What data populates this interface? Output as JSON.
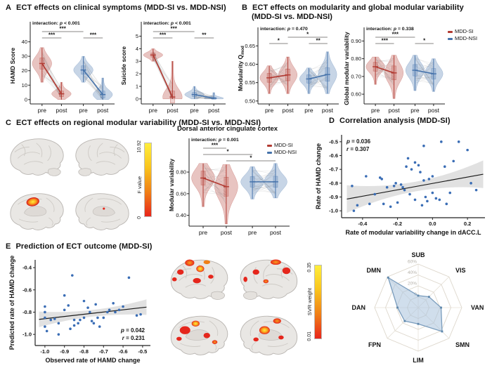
{
  "panels": {
    "a": {
      "label": "A",
      "title": "ECT effects on clinical symptoms (MDD-SI vs. MDD-NSI)"
    },
    "b": {
      "label": "B",
      "title": "ECT effects on modularity and global modular variability",
      "title2": "(MDD-SI vs. MDD-NSI)"
    },
    "c": {
      "label": "C",
      "title": "ECT effects on regional modular variability (MDD-SI vs. MDD-NSI)",
      "colorbar": {
        "label": "F value",
        "min": "0",
        "max": "10.92"
      }
    },
    "d": {
      "label": "D",
      "title": "Correlation analysis (MDD-SI)"
    },
    "e": {
      "label": "E",
      "title": "Prediction of ECT outcome (MDD-SI)",
      "colorbar": {
        "label": "SVR weight",
        "min": "0.01",
        "max": "0.35"
      }
    }
  },
  "legend": {
    "si": "MDD-SI",
    "nsi": "MDD-NSI",
    "si_color": "#b23a32",
    "nsi_color": "#4673ab"
  },
  "chart_data": [
    {
      "id": "hamd",
      "type": "violin",
      "ylabel": "HAMD Score",
      "ylim": [
        -3,
        50
      ],
      "yticks": [
        0,
        10,
        20,
        30,
        40
      ],
      "ytick_labels": [
        "0",
        "10",
        "20",
        "30",
        "40"
      ],
      "xlabels": [
        "pre",
        "post",
        "pre",
        "post"
      ],
      "interaction": "interaction: p < 0.001",
      "series": [
        {
          "name": "MDD-SI",
          "color": "#b23a32",
          "pre": {
            "mean": 25,
            "lo": 12,
            "hi": 36
          },
          "post": {
            "mean": 4,
            "lo": 0,
            "hi": 12
          }
        },
        {
          "name": "MDD-NSI",
          "color": "#4673ab",
          "pre": {
            "mean": 20.5,
            "lo": 12,
            "hi": 30
          },
          "post": {
            "mean": 3.5,
            "lo": 0,
            "hi": 15
          }
        }
      ],
      "sig": [
        {
          "a": 0,
          "b": 2,
          "label": "***",
          "row": 0
        },
        {
          "a": 0,
          "b": 1,
          "label": "***",
          "row": 1
        },
        {
          "a": 2,
          "b": 3,
          "label": "***",
          "row": 1
        }
      ]
    },
    {
      "id": "suicide",
      "type": "violin",
      "ylabel": "Suicide score",
      "ylim": [
        -0.4,
        5.7
      ],
      "yticks": [
        0,
        1,
        2,
        3,
        4,
        5
      ],
      "ytick_labels": [
        "0",
        "1",
        "2",
        "3",
        "4",
        "5"
      ],
      "xlabels": [
        "pre",
        "post",
        "pre",
        "post"
      ],
      "interaction": "interaction: p < 0.001",
      "series": [
        {
          "name": "MDD-SI",
          "color": "#b23a32",
          "pre": {
            "mean": 3.5,
            "lo": 3,
            "hi": 4
          },
          "post": {
            "mean": 0.15,
            "lo": 0,
            "hi": 3
          }
        },
        {
          "name": "MDD-NSI",
          "color": "#4673ab",
          "pre": {
            "mean": 0.35,
            "lo": 0,
            "hi": 1
          },
          "post": {
            "mean": 0.05,
            "lo": 0,
            "hi": 0.5
          }
        }
      ],
      "sig": [
        {
          "a": 0,
          "b": 2,
          "label": "***",
          "row": 0
        },
        {
          "a": 0,
          "b": 1,
          "label": "***",
          "row": 1
        },
        {
          "a": 2,
          "b": 3,
          "label": "**",
          "row": 1
        }
      ]
    },
    {
      "id": "qmod",
      "type": "violin",
      "ylabel": "Modularity Q",
      "ylabel_sub": "mod",
      "ylim": [
        0.492,
        0.685
      ],
      "yticks": [
        0.5,
        0.55,
        0.6,
        0.65
      ],
      "ytick_labels": [
        "0.50",
        "0.55",
        "0.60",
        "0.65"
      ],
      "xlabels": [
        "pre",
        "post",
        "pre",
        "post"
      ],
      "interaction": "interaction: p = 0.470",
      "series": [
        {
          "name": "MDD-SI",
          "color": "#b23a32",
          "pre": {
            "mean": 0.563,
            "lo": 0.52,
            "hi": 0.596
          },
          "post": {
            "mean": 0.571,
            "lo": 0.52,
            "hi": 0.62
          }
        },
        {
          "name": "MDD-NSI",
          "color": "#4673ab",
          "pre": {
            "mean": 0.56,
            "lo": 0.52,
            "hi": 0.59
          },
          "post": {
            "mean": 0.572,
            "lo": 0.52,
            "hi": 0.634
          }
        }
      ],
      "sig": [
        {
          "a": 1,
          "b": 3,
          "label": "*",
          "row": 0
        },
        {
          "a": 0,
          "b": 1,
          "label": "*",
          "row": 1
        },
        {
          "a": 2,
          "b": 3,
          "label": "**",
          "row": 1
        }
      ]
    },
    {
      "id": "gmv",
      "type": "violin",
      "ylabel": "Global modular variability",
      "ylim": [
        0.545,
        0.945
      ],
      "yticks": [
        0.6,
        0.7,
        0.8,
        0.9
      ],
      "ytick_labels": [
        "0.60",
        "0.70",
        "0.80",
        "0.90"
      ],
      "xlabels": [
        "pre",
        "post",
        "pre",
        "post"
      ],
      "interaction": "interaction: p = 0.338",
      "series": [
        {
          "name": "MDD-SI",
          "color": "#b23a32",
          "pre": {
            "mean": 0.755,
            "lo": 0.655,
            "hi": 0.81
          },
          "post": {
            "mean": 0.72,
            "lo": 0.575,
            "hi": 0.82
          }
        },
        {
          "name": "MDD-NSI",
          "color": "#4673ab",
          "pre": {
            "mean": 0.735,
            "lo": 0.62,
            "hi": 0.82
          },
          "post": {
            "mean": 0.715,
            "lo": 0.615,
            "hi": 0.8
          }
        }
      ],
      "sig": [
        {
          "a": 0,
          "b": 2,
          "label": "***",
          "row": 0
        },
        {
          "a": 0,
          "b": 1,
          "label": "***",
          "row": 1
        },
        {
          "a": 2,
          "b": 3,
          "label": "*",
          "row": 1
        }
      ]
    },
    {
      "id": "dacc",
      "type": "violin",
      "title": "Dorsal anterior cingulate cortex",
      "ylabel": "Modular variability",
      "ylim": [
        0.3,
        1.06
      ],
      "yticks": [
        0.4,
        0.6,
        0.8
      ],
      "ytick_labels": [
        "0.40",
        "0.60",
        "0.80"
      ],
      "xlabels": [
        "pre",
        "post",
        "pre",
        "post"
      ],
      "interaction": "interaction: p = 0.001",
      "series": [
        {
          "name": "MDD-SI",
          "color": "#b23a32",
          "pre": {
            "mean": 0.745,
            "lo": 0.48,
            "hi": 0.88
          },
          "post": {
            "mean": 0.665,
            "lo": 0.32,
            "hi": 0.87
          }
        },
        {
          "name": "MDD-NSI",
          "color": "#4673ab",
          "pre": {
            "mean": 0.71,
            "lo": 0.55,
            "hi": 0.85
          },
          "post": {
            "mean": 0.71,
            "lo": 0.56,
            "hi": 0.88
          }
        }
      ],
      "sig": [
        {
          "a": 0,
          "b": 1,
          "label": "***",
          "row": 0
        },
        {
          "a": 0,
          "b": 2,
          "label": "*",
          "row": 1
        },
        {
          "a": 1,
          "b": 3,
          "label": "*",
          "row": 2
        }
      ]
    },
    {
      "id": "corr",
      "type": "scatter",
      "xlabel": "Rate of modular variability change in dACC.L",
      "ylabel": "Rate of HAMD change",
      "xlim": [
        -0.52,
        0.3
      ],
      "xticks": [
        -0.4,
        -0.2,
        0.0,
        0.2
      ],
      "xtick_labels": [
        "-0.4",
        "-0.2",
        "0.0",
        "0.2"
      ],
      "ylim": [
        -1.05,
        -0.45
      ],
      "yticks": [
        -0.5,
        -0.6,
        -0.7,
        -0.8,
        -0.9,
        -1.0
      ],
      "ytick_labels": [
        "-0.5",
        "-0.6",
        "-0.7",
        "-0.8",
        "-0.9",
        "-1.0"
      ],
      "annot": [
        [
          "p",
          " = 0.036"
        ],
        [
          "r",
          " = 0.307"
        ]
      ],
      "annot_pos": "tl",
      "fit": {
        "x1": -0.49,
        "y1": -0.915,
        "x2": 0.29,
        "y2": -0.735
      },
      "band": {
        "mid": 0.035,
        "end": 0.1
      },
      "point_color": "#3a6db5",
      "points": [
        [
          -0.46,
          -0.82
        ],
        [
          -0.45,
          -1.0
        ],
        [
          -0.43,
          -0.96
        ],
        [
          -0.38,
          -0.75
        ],
        [
          -0.36,
          -0.95
        ],
        [
          -0.33,
          -0.88
        ],
        [
          -0.3,
          -0.76
        ],
        [
          -0.29,
          -0.77
        ],
        [
          -0.28,
          -0.95
        ],
        [
          -0.26,
          -0.83
        ],
        [
          -0.24,
          -0.97
        ],
        [
          -0.22,
          -0.82
        ],
        [
          -0.21,
          -0.8
        ],
        [
          -0.2,
          -0.94
        ],
        [
          -0.18,
          -0.81
        ],
        [
          -0.17,
          -0.83
        ],
        [
          -0.16,
          -0.85
        ],
        [
          -0.15,
          -0.68
        ],
        [
          -0.14,
          -0.62
        ],
        [
          -0.13,
          -0.88
        ],
        [
          -0.12,
          -0.7
        ],
        [
          -0.1,
          -0.92
        ],
        [
          -0.1,
          -0.65
        ],
        [
          -0.08,
          -0.67
        ],
        [
          -0.07,
          -0.72
        ],
        [
          -0.06,
          -0.96
        ],
        [
          -0.05,
          -0.53
        ],
        [
          -0.05,
          -0.78
        ],
        [
          -0.04,
          -0.9
        ],
        [
          -0.03,
          -0.93
        ],
        [
          -0.02,
          -0.77
        ],
        [
          0.0,
          -0.75
        ],
        [
          0.0,
          -0.87
        ],
        [
          0.02,
          -0.91
        ],
        [
          0.04,
          -0.92
        ],
        [
          0.05,
          -0.5
        ],
        [
          0.07,
          -0.68
        ],
        [
          0.08,
          -0.95
        ],
        [
          0.1,
          -0.87
        ],
        [
          0.12,
          -0.64
        ],
        [
          0.15,
          -0.5
        ],
        [
          0.2,
          -0.56
        ],
        [
          0.22,
          -0.8
        ],
        [
          0.25,
          -0.85
        ]
      ]
    },
    {
      "id": "pred",
      "type": "scatter",
      "xlabel": "Observed rate of HAMD change",
      "ylabel": "Predicted rate of HAMD change",
      "xlim": [
        -1.05,
        -0.46
      ],
      "xticks": [
        -1.0,
        -0.9,
        -0.8,
        -0.7,
        -0.6,
        -0.5
      ],
      "xtick_labels": [
        "-1.0",
        "-0.9",
        "-0.8",
        "-0.7",
        "-0.6",
        "-0.5"
      ],
      "ylim": [
        -1.1,
        -0.33
      ],
      "yticks": [
        -0.4,
        -0.6,
        -0.8,
        -1.0
      ],
      "ytick_labels": [
        "-0.4",
        "-0.6",
        "-0.8",
        "-1.0"
      ],
      "annot": [
        [
          "p",
          " = 0.042"
        ],
        [
          "r",
          " = 0.231"
        ]
      ],
      "annot_pos": "br",
      "fit": {
        "x1": -1.03,
        "y1": -0.865,
        "x2": -0.48,
        "y2": -0.755
      },
      "band": {
        "mid": 0.03,
        "end": 0.07
      },
      "point_color": "#3a6db5",
      "points": [
        [
          -1.0,
          -0.75
        ],
        [
          -1.0,
          -0.8
        ],
        [
          -1.0,
          -0.85
        ],
        [
          -1.0,
          -0.93
        ],
        [
          -0.99,
          -0.97
        ],
        [
          -0.97,
          -0.87
        ],
        [
          -0.95,
          -0.86
        ],
        [
          -0.93,
          -0.9
        ],
        [
          -0.93,
          -1.0
        ],
        [
          -0.9,
          -0.65
        ],
        [
          -0.9,
          -0.78
        ],
        [
          -0.88,
          -0.74
        ],
        [
          -0.87,
          -0.95
        ],
        [
          -0.86,
          -0.47
        ],
        [
          -0.85,
          -0.87
        ],
        [
          -0.85,
          -0.92
        ],
        [
          -0.83,
          -0.9
        ],
        [
          -0.82,
          -0.87
        ],
        [
          -0.8,
          -0.7
        ],
        [
          -0.8,
          -0.85
        ],
        [
          -0.78,
          -0.76
        ],
        [
          -0.77,
          -0.8
        ],
        [
          -0.76,
          -0.88
        ],
        [
          -0.75,
          -0.9
        ],
        [
          -0.74,
          -0.73
        ],
        [
          -0.73,
          -0.85
        ],
        [
          -0.72,
          -0.93
        ],
        [
          -0.7,
          -0.85
        ],
        [
          -0.68,
          -0.8
        ],
        [
          -0.67,
          -0.78
        ],
        [
          -0.65,
          -0.72
        ],
        [
          -0.64,
          -0.8
        ],
        [
          -0.62,
          -0.78
        ],
        [
          -0.6,
          -0.75
        ],
        [
          -0.57,
          -0.49
        ],
        [
          -0.53,
          -0.83
        ],
        [
          -0.51,
          -0.82
        ]
      ]
    },
    {
      "id": "radar",
      "type": "radar",
      "categories": [
        "SUB",
        "VIS",
        "VAN",
        "SMN",
        "LIM",
        "FPN",
        "DAN",
        "DMN"
      ],
      "values": [
        2,
        8,
        22,
        42,
        10,
        15,
        18,
        58
      ],
      "rings": [
        0,
        20,
        40,
        60
      ],
      "ring_labels": [
        "0",
        "20%",
        "40%",
        "60%"
      ],
      "ring_min": -20,
      "fill": "#a9c2dc",
      "stroke": "#7b9dbd",
      "marker": "#5f88ad"
    }
  ]
}
